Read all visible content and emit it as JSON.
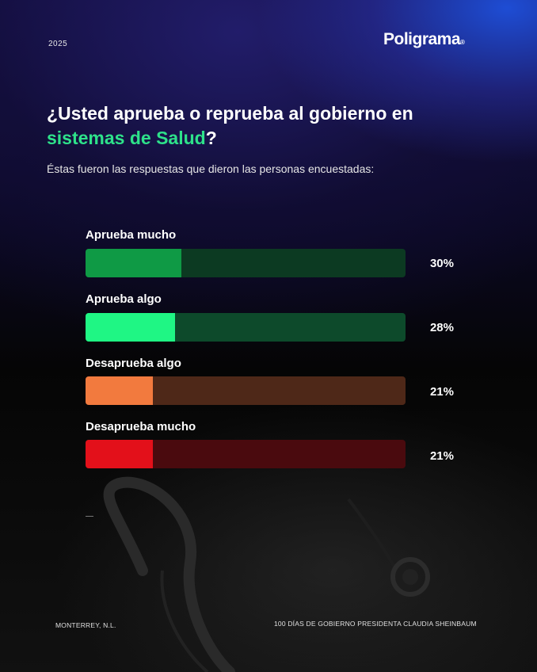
{
  "header": {
    "year": "2025",
    "brand": "Poligrama",
    "brand_mark": "®"
  },
  "title": {
    "part1": "¿Usted aprueba o reprueba al gobierno en",
    "highlight": "sistemas de Salud",
    "end": "?"
  },
  "subtitle": "Éstas fueron las respuestas que dieron las personas encuestadas:",
  "chart_data": {
    "type": "bar",
    "orientation": "horizontal",
    "categories": [
      "Aprueba mucho",
      "Aprueba algo",
      "Desaprueba algo",
      "Desaprueba mucho"
    ],
    "values": [
      30,
      28,
      21,
      21
    ],
    "value_labels": [
      "30%",
      "28%",
      "21%",
      "21%"
    ],
    "unit": "%",
    "xlim": [
      0,
      100
    ],
    "colors": {
      "fill": [
        "#0f9a45",
        "#1ff684",
        "#f27a3e",
        "#e3101a"
      ],
      "track": [
        "#0c3a22",
        "#0d4a2b",
        "#4e2818",
        "#4a0a0e"
      ]
    }
  },
  "footer": {
    "left": "MONTERREY, N.L.",
    "right": "100 DÍAS DE GOBIERNO PRESIDENTA CLAUDIA SHEINBAUM"
  }
}
